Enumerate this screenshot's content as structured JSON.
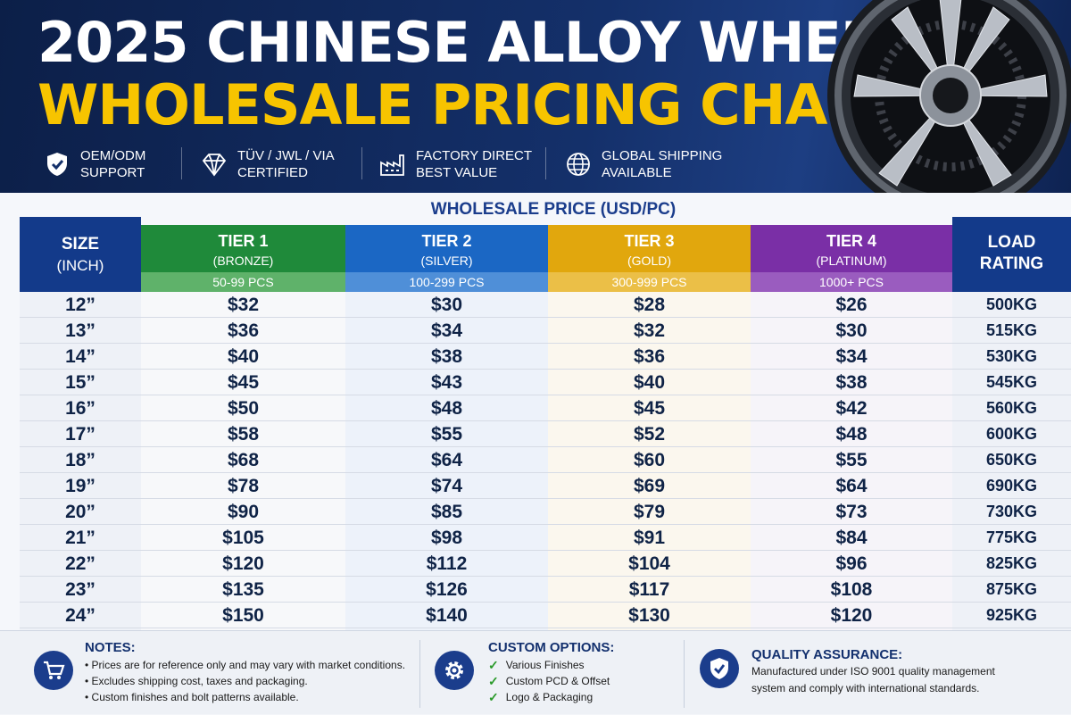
{
  "header": {
    "title_line1": "2025 CHINESE ALLOY WHEEL",
    "title_line2": "WHOLESALE PRICING CHART",
    "features": [
      {
        "label_line1": "OEM/ODM",
        "label_line2": "SUPPORT",
        "icon": "shield-check-icon"
      },
      {
        "label_line1": "TÜV / JWL / VIA",
        "label_line2": "CERTIFIED",
        "icon": "diamond-icon"
      },
      {
        "label_line1": "FACTORY DIRECT",
        "label_line2": "BEST VALUE",
        "icon": "factory-icon"
      },
      {
        "label_line1": "GLOBAL SHIPPING",
        "label_line2": "AVAILABLE",
        "icon": "globe-icon"
      }
    ]
  },
  "table": {
    "caption": "WHOLESALE PRICE (USD/PC)",
    "size_header_line1": "SIZE",
    "size_header_line2": "(INCH)",
    "load_header_line1": "LOAD",
    "load_header_line2": "RATING",
    "tiers": [
      {
        "name": "TIER 1",
        "level": "(BRONZE)",
        "qty": "50-99 PCS",
        "color": "#1f8a3a",
        "qty_color": "#5fb26a"
      },
      {
        "name": "TIER 2",
        "level": "(SILVER)",
        "qty": "100-299 PCS",
        "color": "#1b67c4",
        "qty_color": "#4f8fd8"
      },
      {
        "name": "TIER 3",
        "level": "(GOLD)",
        "qty": "300-999 PCS",
        "color": "#e1a70d",
        "qty_color": "#ebbf47"
      },
      {
        "name": "TIER 4",
        "level": "(PLATINUM)",
        "qty": "1000+ PCS",
        "color": "#7a2fa6",
        "qty_color": "#9a5cbf"
      }
    ],
    "rows": [
      {
        "size": "12”",
        "t1": "$32",
        "t2": "$30",
        "t3": "$28",
        "t4": "$26",
        "load": "500KG"
      },
      {
        "size": "13”",
        "t1": "$36",
        "t2": "$34",
        "t3": "$32",
        "t4": "$30",
        "load": "515KG"
      },
      {
        "size": "14”",
        "t1": "$40",
        "t2": "$38",
        "t3": "$36",
        "t4": "$34",
        "load": "530KG"
      },
      {
        "size": "15”",
        "t1": "$45",
        "t2": "$43",
        "t3": "$40",
        "t4": "$38",
        "load": "545KG"
      },
      {
        "size": "16”",
        "t1": "$50",
        "t2": "$48",
        "t3": "$45",
        "t4": "$42",
        "load": "560KG"
      },
      {
        "size": "17”",
        "t1": "$58",
        "t2": "$55",
        "t3": "$52",
        "t4": "$48",
        "load": "600KG"
      },
      {
        "size": "18”",
        "t1": "$68",
        "t2": "$64",
        "t3": "$60",
        "t4": "$55",
        "load": "650KG"
      },
      {
        "size": "19”",
        "t1": "$78",
        "t2": "$74",
        "t3": "$69",
        "t4": "$64",
        "load": "690KG"
      },
      {
        "size": "20”",
        "t1": "$90",
        "t2": "$85",
        "t3": "$79",
        "t4": "$73",
        "load": "730KG"
      },
      {
        "size": "21”",
        "t1": "$105",
        "t2": "$98",
        "t3": "$91",
        "t4": "$84",
        "load": "775KG"
      },
      {
        "size": "22”",
        "t1": "$120",
        "t2": "$112",
        "t3": "$104",
        "t4": "$96",
        "load": "825KG"
      },
      {
        "size": "23”",
        "t1": "$135",
        "t2": "$126",
        "t3": "$117",
        "t4": "$108",
        "load": "875KG"
      },
      {
        "size": "24”",
        "t1": "$150",
        "t2": "$140",
        "t3": "$130",
        "t4": "$120",
        "load": "925KG"
      }
    ]
  },
  "footer": {
    "notes": {
      "title": "NOTES:",
      "items": [
        "Prices are for reference only and may vary with market conditions.",
        "Excludes shipping cost, taxes and packaging.",
        "Custom finishes and bolt patterns available."
      ],
      "icon": "cart-icon"
    },
    "custom": {
      "title": "CUSTOM OPTIONS:",
      "items": [
        "Various Finishes",
        "Custom PCD & Offset",
        "Logo & Packaging"
      ],
      "icon": "gear-icon"
    },
    "quality": {
      "title": "QUALITY ASSURANCE:",
      "line1": "Manufactured under ISO 9001 quality management",
      "line2": "system and comply with international standards.",
      "icon": "shield-check-icon"
    }
  }
}
